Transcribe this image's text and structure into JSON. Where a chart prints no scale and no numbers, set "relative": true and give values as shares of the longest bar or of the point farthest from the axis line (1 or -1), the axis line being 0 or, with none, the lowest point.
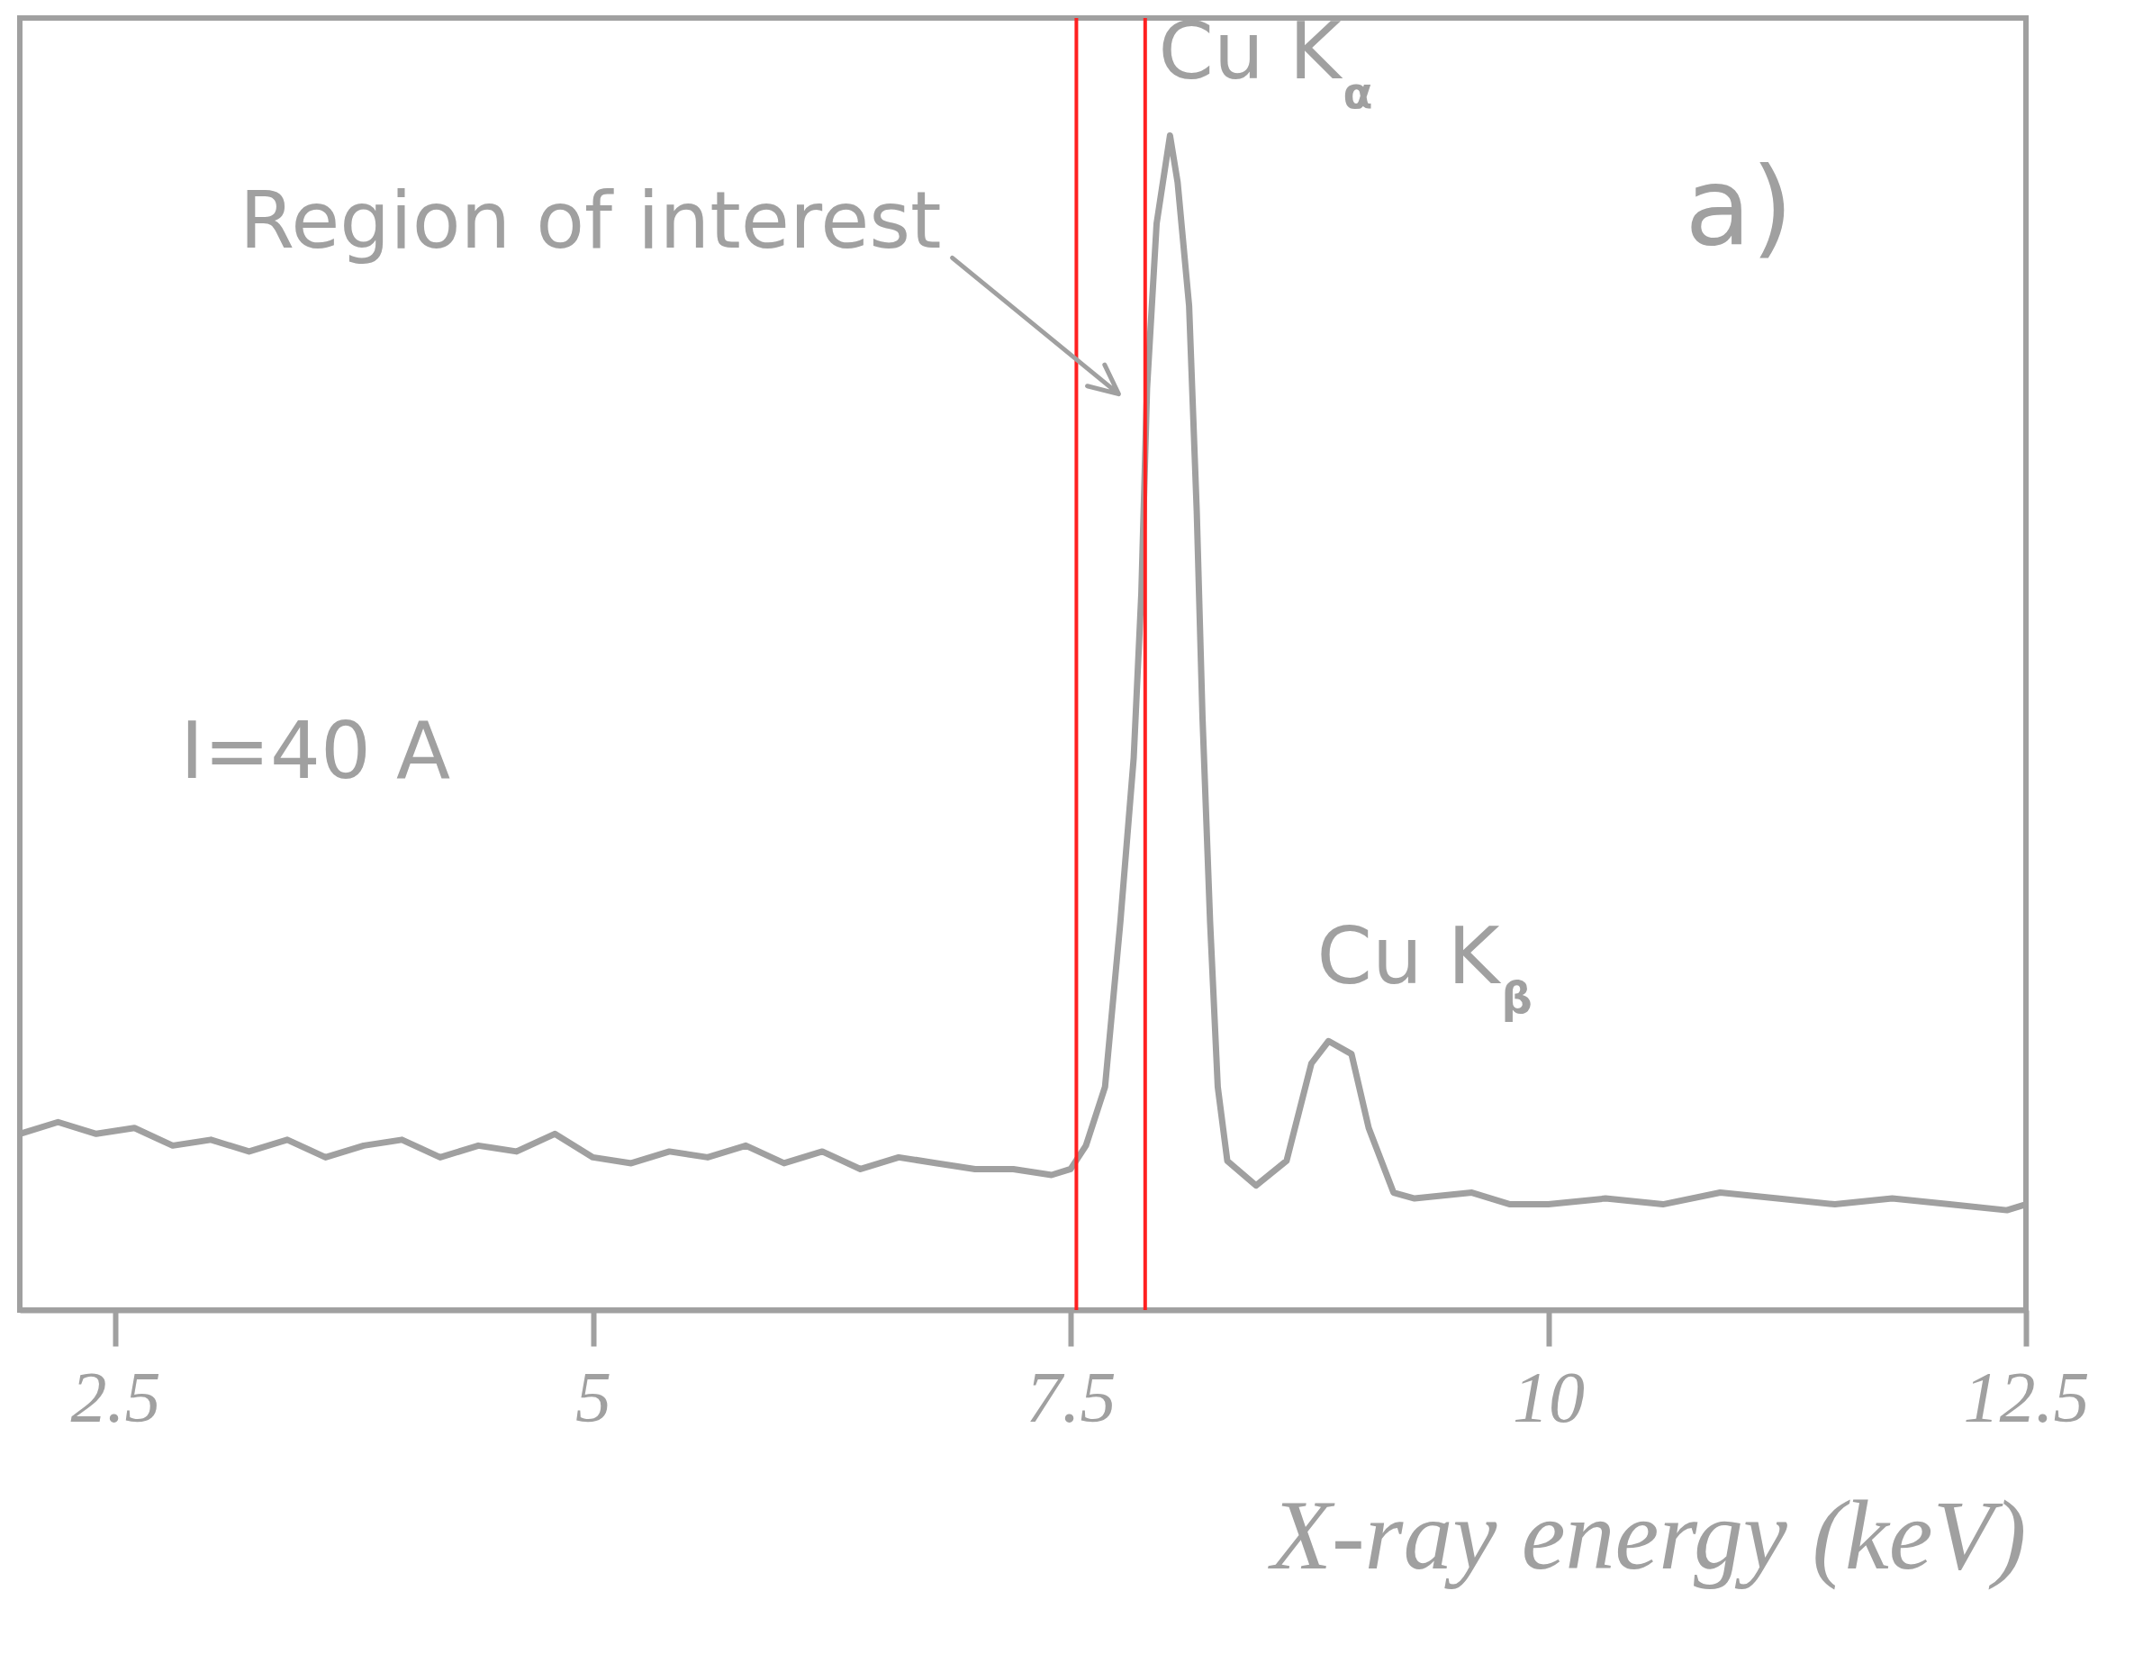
{
  "chart_data": {
    "type": "line",
    "relative": true,
    "color": "#a0a0a0",
    "xlabel": "X-ray energy (keV)",
    "xlim": [
      2,
      12.5
    ],
    "xticks": [
      2.5,
      5,
      7.5,
      10,
      12.5
    ],
    "x": [
      2.0,
      2.2,
      2.4,
      2.6,
      2.8,
      3.0,
      3.2,
      3.4,
      3.6,
      3.8,
      4.0,
      4.2,
      4.4,
      4.6,
      4.8,
      5.0,
      5.2,
      5.4,
      5.6,
      5.8,
      6.0,
      6.2,
      6.4,
      6.6,
      6.8,
      7.0,
      7.2,
      7.4,
      7.5,
      7.58,
      7.68,
      7.76,
      7.83,
      7.87,
      7.9,
      7.95,
      8.02,
      8.06,
      8.12,
      8.16,
      8.19,
      8.23,
      8.27,
      8.32,
      8.47,
      8.63,
      8.76,
      8.85,
      8.97,
      9.06,
      9.19,
      9.3,
      9.6,
      9.8,
      10.0,
      10.3,
      10.6,
      10.9,
      11.2,
      11.5,
      11.8,
      12.1,
      12.4,
      12.5
    ],
    "values": [
      0.15,
      0.16,
      0.15,
      0.155,
      0.14,
      0.145,
      0.135,
      0.145,
      0.13,
      0.14,
      0.145,
      0.13,
      0.14,
      0.135,
      0.15,
      0.13,
      0.125,
      0.135,
      0.13,
      0.14,
      0.125,
      0.135,
      0.12,
      0.13,
      0.125,
      0.12,
      0.12,
      0.115,
      0.12,
      0.14,
      0.19,
      0.33,
      0.47,
      0.61,
      0.785,
      0.925,
      1.0,
      0.96,
      0.855,
      0.68,
      0.505,
      0.33,
      0.19,
      0.127,
      0.106,
      0.127,
      0.21,
      0.229,
      0.218,
      0.155,
      0.1,
      0.095,
      0.1,
      0.09,
      0.09,
      0.095,
      0.09,
      0.1,
      0.095,
      0.09,
      0.095,
      0.09,
      0.085,
      0.09
    ],
    "ref_lines": [
      {
        "axis": "x",
        "value": 7.53,
        "color": "#ff2020"
      },
      {
        "axis": "x",
        "value": 7.89,
        "color": "#ff2020"
      }
    ],
    "annotations": [
      {
        "text": "Cu K$_{α}$",
        "x": 8.02,
        "y": 1.0
      },
      "Region of interest",
      "a)",
      "I=40 A",
      {
        "text": "Cu K$_{β}$",
        "x": 8.85,
        "y": 0.23
      }
    ]
  }
}
